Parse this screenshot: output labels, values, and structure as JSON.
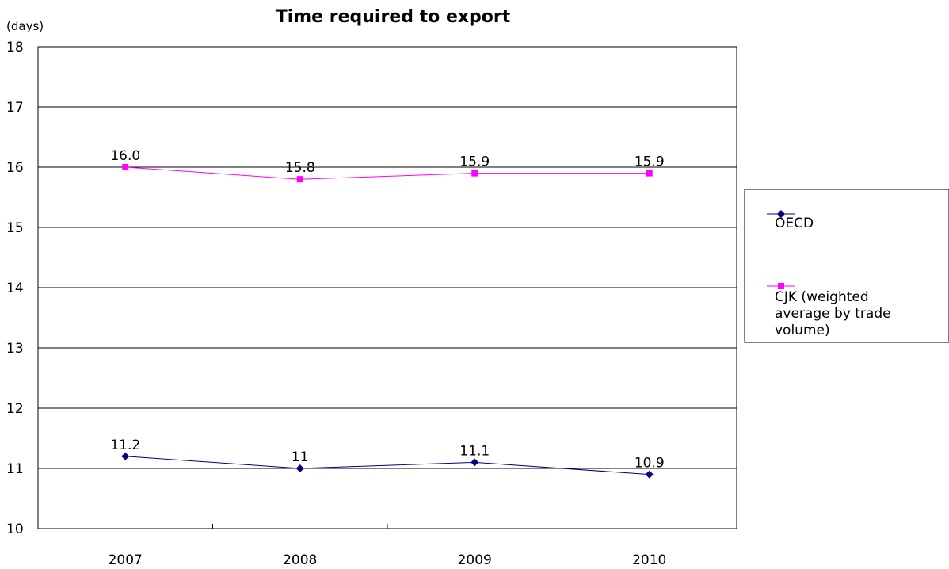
{
  "chart_data": {
    "type": "line",
    "title": "Time required to export",
    "y_unit_label": "(days)",
    "ylim": [
      10,
      18
    ],
    "yticks": [
      "10",
      "11",
      "12",
      "13",
      "14",
      "15",
      "16",
      "17",
      "18"
    ],
    "categories": [
      "2007",
      "2008",
      "2009",
      "2010"
    ],
    "grid": true,
    "legend_position": "right",
    "series": [
      {
        "name": "OECD",
        "values": [
          11.2,
          11.0,
          11.1,
          10.9
        ],
        "labels": [
          "11.2",
          "11",
          "11.1",
          "10.9"
        ],
        "color": "#000080",
        "marker": "diamond"
      },
      {
        "name_lines": [
          "CJK (weighted",
          "average by trade",
          "volume)"
        ],
        "values": [
          16.0,
          15.8,
          15.9,
          15.9
        ],
        "labels": [
          "16.0",
          "15.8",
          "15.9",
          "15.9"
        ],
        "color": "#FF00FF",
        "marker": "square"
      }
    ]
  }
}
